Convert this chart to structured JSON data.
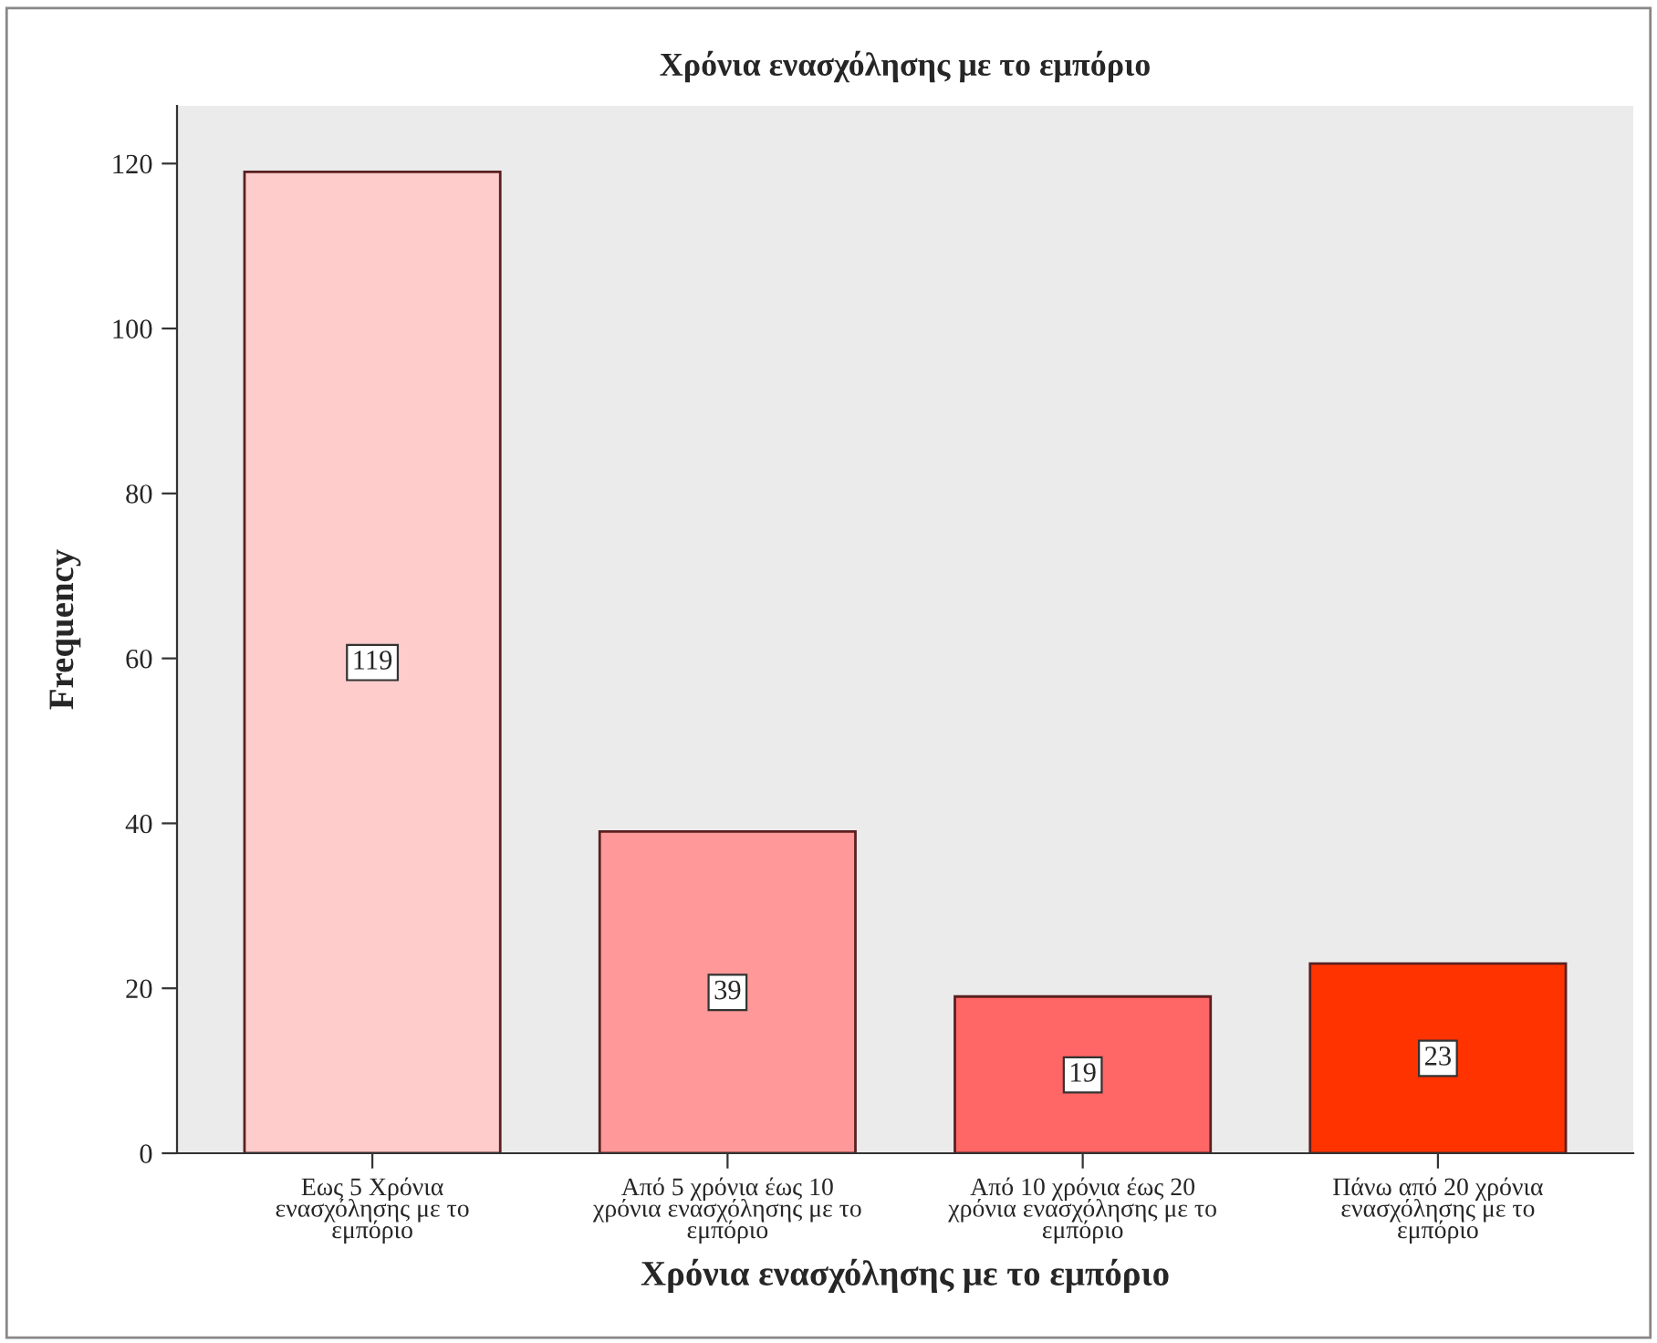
{
  "chart_data": {
    "type": "bar",
    "title": "Χρόνια ενασχόλησης με το εμπόριο",
    "xlabel": "Χρόνια ενασχόλησης με το εμπόριο",
    "ylabel": "Frequency",
    "categories": [
      "Εως 5 Χρόνια\nενασχόλησης με το\nεμπόριο",
      "Από 5 χρόνια έως 10\nχρόνια ενασχόλησης με το\nεμπόριο",
      "Από 10 χρόνια έως 20\nχρόνια ενασχόλησης με το\nεμπόριο",
      "Πάνω από 20 χρόνια\nενασχόλησης με το\nεμπόριο"
    ],
    "values": [
      119,
      39,
      19,
      23
    ],
    "colors": [
      "#ffcccc",
      "#ff9999",
      "#ff6666",
      "#ff3300"
    ],
    "ylim": [
      0,
      127
    ],
    "yticks": [
      0,
      20,
      40,
      60,
      80,
      100,
      120
    ],
    "data_labels": true,
    "grid": false,
    "legend": false
  }
}
